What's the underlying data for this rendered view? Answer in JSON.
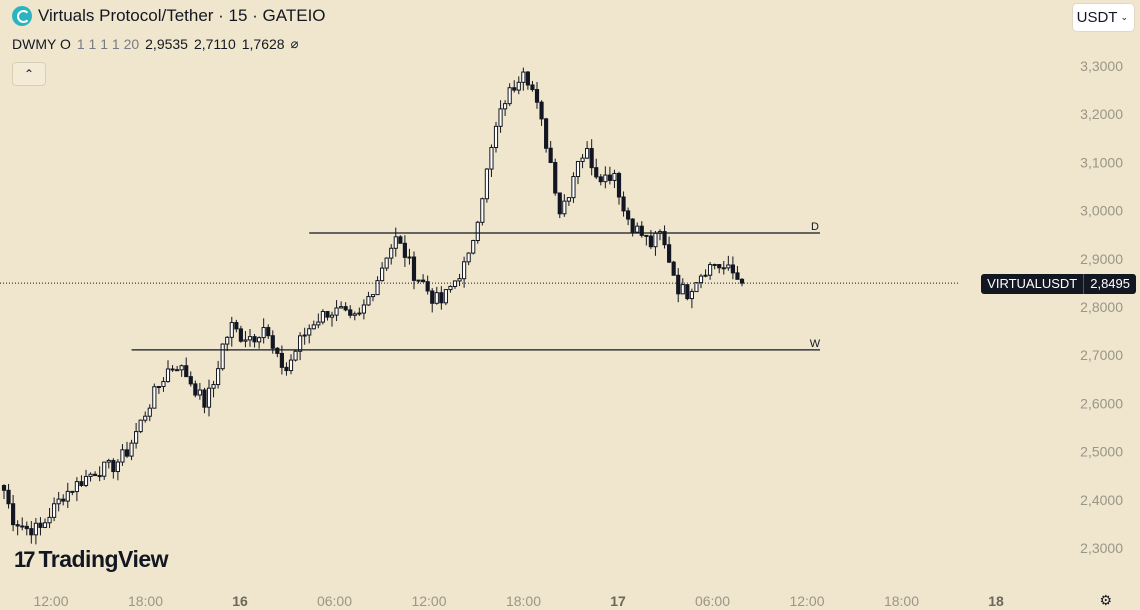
{
  "header": {
    "title": "Virtuals Protocol/Tether · 15 · GATEIO",
    "indicator": {
      "name": "DWMY O",
      "params": "1 1 1 1 20",
      "values": [
        "2,9535",
        "2,7110",
        "1,7628"
      ],
      "toggle_glyph": "⌀"
    },
    "collapse_glyph": "⌃",
    "currency": "USDT",
    "currency_chevron": "⌄"
  },
  "price_tag": {
    "symbol": "VIRTUALUSDT",
    "value": "2,8495"
  },
  "branding": {
    "logo_mark": "17",
    "logo_text": "TradingView"
  },
  "settings_glyph": "⚙",
  "colors": {
    "background": "#efe6cd",
    "candle": "#131722",
    "axis_text": "#9a9687"
  },
  "chart_data": {
    "type": "candlestick",
    "yticks": [
      "3,3000",
      "3,2000",
      "3,1000",
      "3,0000",
      "2,9000",
      "2,8000",
      "2,7000",
      "2,6000",
      "2,5000",
      "2,4000",
      "2,3000"
    ],
    "ytick_values": [
      3.3,
      3.2,
      3.1,
      3.0,
      2.9,
      2.8,
      2.7,
      2.6,
      2.5,
      2.4,
      2.3
    ],
    "xticks": [
      {
        "label": "12:00",
        "bold": false
      },
      {
        "label": "18:00",
        "bold": false
      },
      {
        "label": "16",
        "bold": true
      },
      {
        "label": "06:00",
        "bold": false
      },
      {
        "label": "12:00",
        "bold": false
      },
      {
        "label": "18:00",
        "bold": false
      },
      {
        "label": "17",
        "bold": true
      },
      {
        "label": "06:00",
        "bold": false
      },
      {
        "label": "12:00",
        "bold": false
      },
      {
        "label": "18:00",
        "bold": false
      },
      {
        "label": "18",
        "bold": true
      }
    ],
    "ylim": [
      2.26,
      3.38
    ],
    "last_price": 2.8495,
    "levels": [
      {
        "label": "D",
        "value": 2.9535,
        "start_index": 67
      },
      {
        "label": "W",
        "value": 2.711,
        "start_index": 28
      }
    ],
    "close_path": [
      [
        0,
        2.42
      ],
      [
        2,
        2.36
      ],
      [
        5,
        2.34
      ],
      [
        8,
        2.34
      ],
      [
        10,
        2.37
      ],
      [
        13,
        2.41
      ],
      [
        17,
        2.44
      ],
      [
        20,
        2.46
      ],
      [
        24,
        2.47
      ],
      [
        27,
        2.5
      ],
      [
        30,
        2.56
      ],
      [
        33,
        2.62
      ],
      [
        36,
        2.67
      ],
      [
        38,
        2.68
      ],
      [
        40,
        2.66
      ],
      [
        42,
        2.63
      ],
      [
        44,
        2.6
      ],
      [
        46,
        2.64
      ],
      [
        48,
        2.72
      ],
      [
        50,
        2.76
      ],
      [
        52,
        2.74
      ],
      [
        55,
        2.74
      ],
      [
        57,
        2.76
      ],
      [
        59,
        2.71
      ],
      [
        60,
        2.69
      ],
      [
        62,
        2.67
      ],
      [
        63,
        2.69
      ],
      [
        65,
        2.73
      ],
      [
        68,
        2.77
      ],
      [
        71,
        2.79
      ],
      [
        74,
        2.79
      ],
      [
        76,
        2.77
      ],
      [
        78,
        2.78
      ],
      [
        80,
        2.82
      ],
      [
        82,
        2.86
      ],
      [
        84,
        2.91
      ],
      [
        86,
        2.94
      ],
      [
        88,
        2.91
      ],
      [
        90,
        2.87
      ],
      [
        92,
        2.85
      ],
      [
        94,
        2.82
      ],
      [
        96,
        2.81
      ],
      [
        98,
        2.84
      ],
      [
        100,
        2.87
      ],
      [
        102,
        2.9
      ],
      [
        104,
        2.99
      ],
      [
        106,
        3.08
      ],
      [
        108,
        3.17
      ],
      [
        110,
        3.23
      ],
      [
        112,
        3.26
      ],
      [
        114,
        3.3
      ],
      [
        116,
        3.25
      ],
      [
        118,
        3.18
      ],
      [
        120,
        3.1
      ],
      [
        122,
        3.0
      ],
      [
        124,
        3.04
      ],
      [
        126,
        3.11
      ],
      [
        128,
        3.12
      ],
      [
        130,
        3.08
      ],
      [
        132,
        3.07
      ],
      [
        134,
        3.08
      ],
      [
        136,
        3.0
      ],
      [
        138,
        2.97
      ],
      [
        140,
        2.95
      ],
      [
        142,
        2.93
      ],
      [
        144,
        2.95
      ],
      [
        146,
        2.9
      ],
      [
        148,
        2.84
      ],
      [
        150,
        2.83
      ],
      [
        152,
        2.86
      ],
      [
        154,
        2.88
      ],
      [
        156,
        2.89
      ],
      [
        158,
        2.88
      ],
      [
        160,
        2.87
      ],
      [
        162,
        2.8495
      ]
    ],
    "candle_count": 163
  }
}
